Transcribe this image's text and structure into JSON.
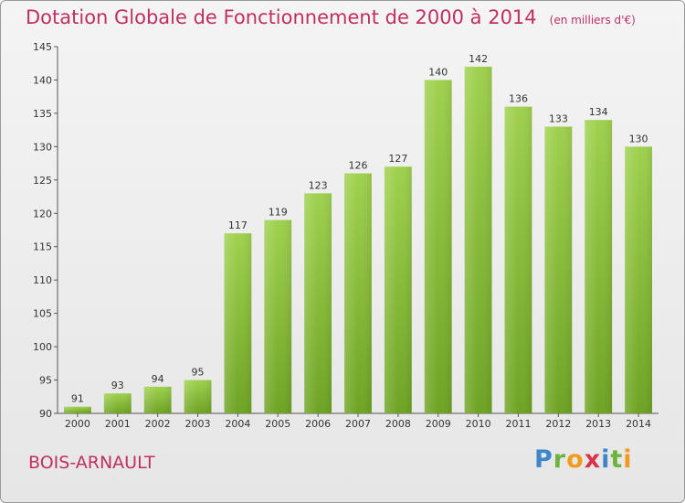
{
  "chart_data": {
    "type": "bar",
    "title": "Dotation Globale de Fonctionnement de 2000 à 2014",
    "unit": "(en milliers d'€)",
    "categories": [
      "2000",
      "2001",
      "2002",
      "2003",
      "2004",
      "2005",
      "2006",
      "2007",
      "2008",
      "2009",
      "2010",
      "2011",
      "2012",
      "2013",
      "2014"
    ],
    "values": [
      91,
      93,
      94,
      95,
      117,
      119,
      123,
      126,
      127,
      140,
      142,
      136,
      133,
      134,
      130
    ],
    "ylim": [
      90,
      145
    ],
    "yticks": [
      "90",
      "95",
      "100",
      "105",
      "110",
      "115",
      "120",
      "125",
      "130",
      "135",
      "140",
      "145"
    ],
    "grid": false,
    "bar_color": "#8cc43c"
  },
  "footer": {
    "commune": "BOIS-ARNAULT",
    "logo_letters": [
      {
        "ch": "P",
        "color": "#3f86c8"
      },
      {
        "ch": "r",
        "color": "#6db33f"
      },
      {
        "ch": "o",
        "color": "#f29a1e"
      },
      {
        "ch": "x",
        "color": "#d8324c"
      },
      {
        "ch": "i",
        "color": "#3f86c8"
      },
      {
        "ch": "t",
        "color": "#6db33f"
      },
      {
        "ch": "i",
        "color": "#f29a1e"
      }
    ]
  }
}
